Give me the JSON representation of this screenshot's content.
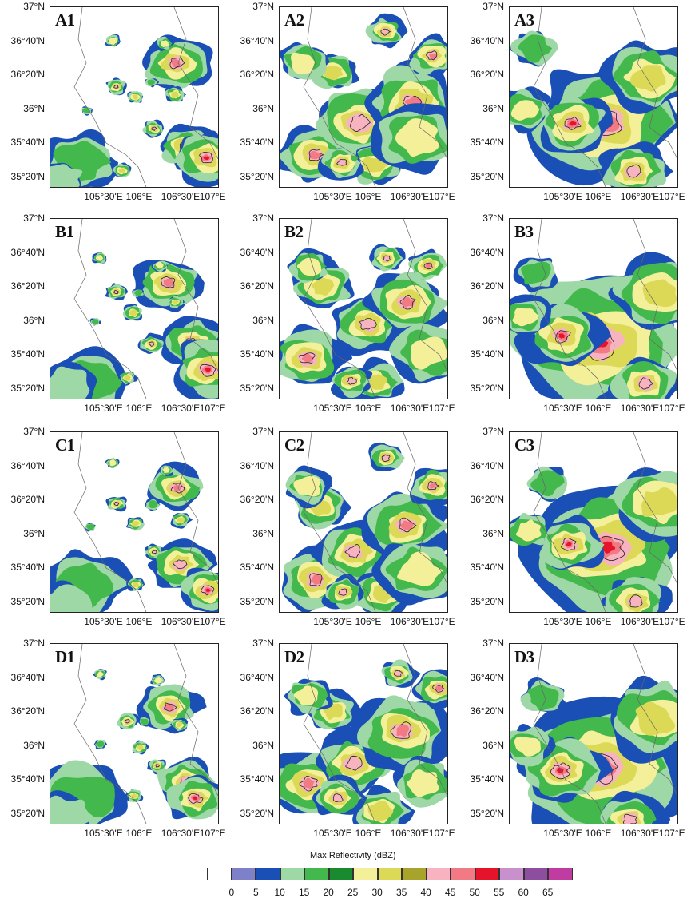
{
  "chart_data": {
    "type": "heatmap",
    "panels": [
      "A1",
      "A2",
      "A3",
      "B1",
      "B2",
      "B3",
      "C1",
      "C2",
      "C3",
      "D1",
      "D2",
      "D3"
    ],
    "y_tick_labels": [
      "37°N",
      "36°40'N",
      "36°20'N",
      "36°N",
      "35°40'N",
      "35°20'N"
    ],
    "x_tick_labels": [
      "105°30'E",
      "106°E",
      "106°30'E",
      "107°E"
    ],
    "colorbar": {
      "title": "Max Reflectivity  (dBZ)",
      "levels": [
        "0",
        "5",
        "10",
        "15",
        "20",
        "25",
        "30",
        "35",
        "40",
        "45",
        "50",
        "55",
        "60",
        "65"
      ],
      "colors": [
        "#ffffff",
        "#7e80c8",
        "#1a4fb5",
        "#9ed8a6",
        "#43b84c",
        "#1a8a2e",
        "#f4f09a",
        "#dcd957",
        "#a8a32b",
        "#f7b4c0",
        "#f27a85",
        "#e5142b",
        "#c890cc",
        "#8e4ea0",
        "#c03ca0"
      ]
    }
  }
}
